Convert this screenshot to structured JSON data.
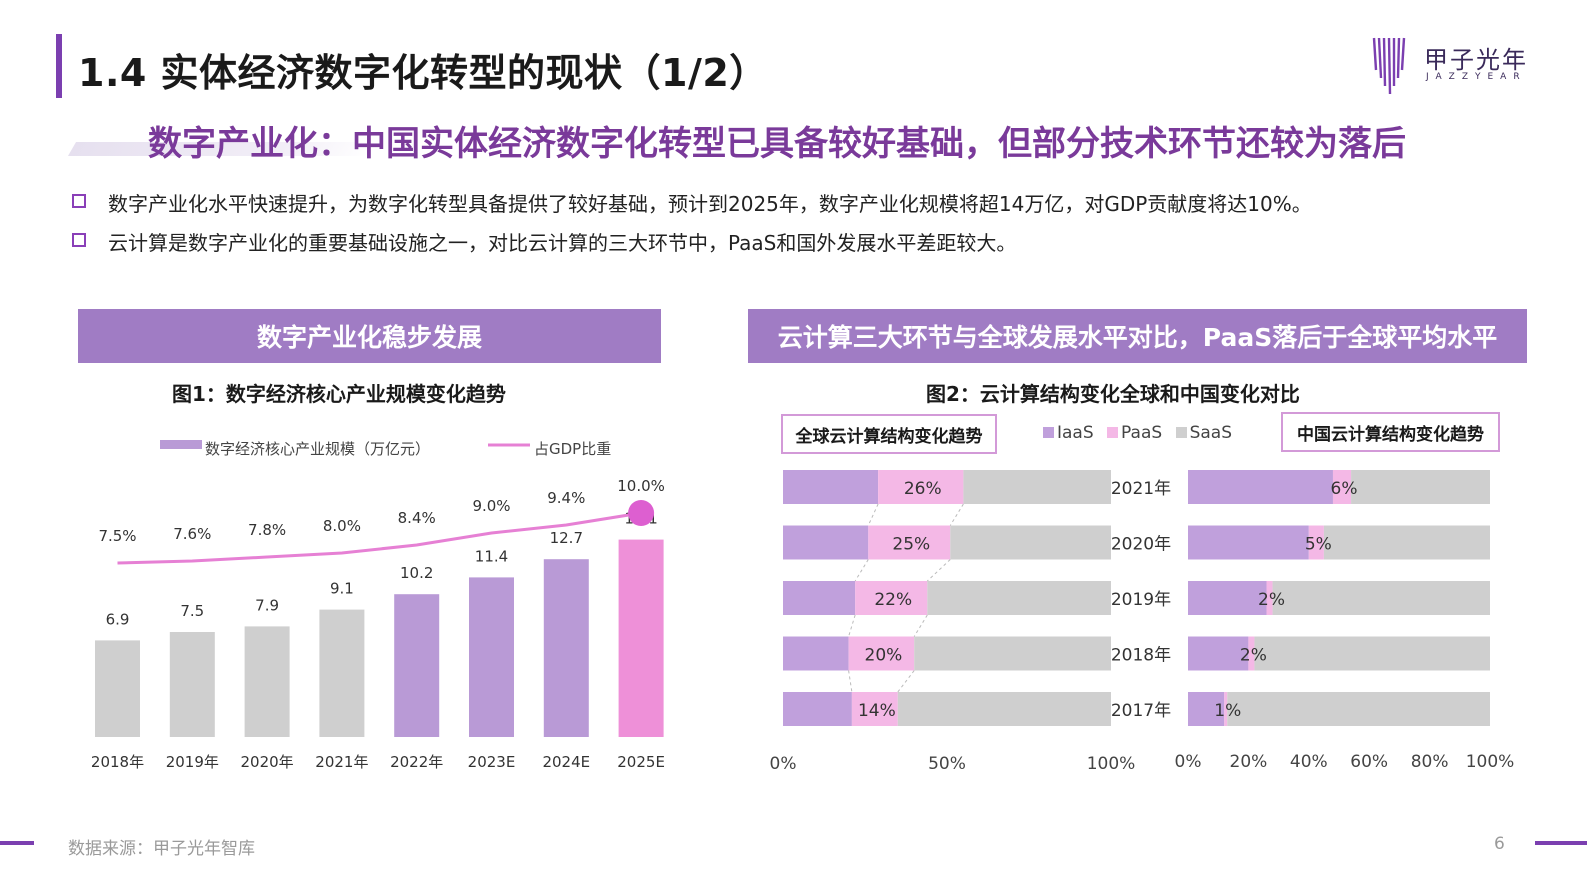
{
  "header": {
    "title": "1.4 实体经济数字化转型的现状（1/2）",
    "subtitle": "数字产业化：中国实体经济数字化转型已具备较好基础，但部分技术环节还较为落后",
    "logo_cn": "甲子光年",
    "logo_en": "JAZZYEAR"
  },
  "bullets": [
    "数字产业化水平快速提升，为数字化转型具备提供了较好基础，预计到2025年，数字产业化规模将超14万亿，对GDP贡献度将达10%。",
    "云计算是数字产业化的重要基础设施之一，对比云计算的三大环节中，PaaS和国外发展水平差距较大。"
  ],
  "left_panel": {
    "header": "数字产业化稳步发展",
    "figure_title": "图1：数字经济核心产业规模变化趋势"
  },
  "right_panel": {
    "header": "云计算三大环节与全球发展水平对比，PaaS落后于全球平均水平",
    "figure_title": "图2：云计算结构变化全球和中国变化对比",
    "global_label": "全球云计算结构变化趋势",
    "china_label": "中国云计算结构变化趋势"
  },
  "colors": {
    "accent": "#7b3fb0",
    "panel_header": "#a07cc4",
    "bar_gray": "#cfcfcf",
    "bar_purple": "#b99ad6",
    "bar_pink": "#ee90d8",
    "line_pink": "#e680d4",
    "iaas": "#c0a0dc",
    "paas": "#f4b8e6",
    "saas": "#cfcfcf"
  },
  "chart_data": [
    {
      "type": "bar",
      "legend": [
        "数字经济核心产业规模（万亿元）",
        "占GDP比重"
      ],
      "categories": [
        "2018年",
        "2019年",
        "2020年",
        "2021年",
        "2022年",
        "2023E",
        "2024E",
        "2025E"
      ],
      "series": [
        {
          "name": "数字经济核心产业规模（万亿元）",
          "values": [
            6.9,
            7.5,
            7.9,
            9.1,
            10.2,
            11.4,
            12.7,
            14.1
          ],
          "value_labels": [
            "6.9",
            "7.5",
            "7.9",
            "9.1",
            "10.2",
            "11.4",
            "12.7",
            "14.1"
          ]
        },
        {
          "name": "占GDP比重",
          "type": "line",
          "values": [
            7.5,
            7.6,
            7.8,
            8.0,
            8.4,
            9.0,
            9.4,
            10.0
          ],
          "value_labels": [
            "7.5%",
            "7.6%",
            "7.8%",
            "8.0%",
            "8.4%",
            "9.0%",
            "9.4%",
            "10.0%"
          ]
        }
      ],
      "bar_colors": [
        "gray",
        "gray",
        "gray",
        "gray",
        "purple",
        "purple",
        "purple",
        "pink"
      ]
    },
    {
      "type": "bar",
      "orientation": "horizontal-stacked-100",
      "title": "全球云计算结构变化趋势",
      "legend": [
        "IaaS",
        "PaaS",
        "SaaS"
      ],
      "categories": [
        "2021年",
        "2020年",
        "2019年",
        "2018年",
        "2017年"
      ],
      "series": [
        {
          "name": "IaaS",
          "values": [
            29,
            26,
            22,
            20,
            21
          ]
        },
        {
          "name": "PaaS",
          "values": [
            26,
            25,
            22,
            20,
            14
          ]
        },
        {
          "name": "SaaS",
          "values": [
            45,
            49,
            56,
            60,
            65
          ]
        }
      ],
      "paas_labels": [
        "26%",
        "25%",
        "22%",
        "20%",
        "14%"
      ],
      "x_ticks": [
        "0%",
        "50%",
        "100%"
      ],
      "xlim": [
        0,
        100
      ]
    },
    {
      "type": "bar",
      "orientation": "horizontal-stacked-100",
      "title": "中国云计算结构变化趋势",
      "categories": [
        "2021年",
        "2020年",
        "2019年",
        "2018年",
        "2017年"
      ],
      "series": [
        {
          "name": "IaaS",
          "values": [
            48,
            40,
            26,
            20,
            12
          ]
        },
        {
          "name": "PaaS",
          "values": [
            6,
            5,
            2,
            2,
            1
          ]
        },
        {
          "name": "SaaS",
          "values": [
            46,
            55,
            72,
            78,
            87
          ]
        }
      ],
      "paas_labels": [
        "6%",
        "5%",
        "2%",
        "2%",
        "1%"
      ],
      "x_ticks": [
        "0%",
        "20%",
        "40%",
        "60%",
        "80%",
        "100%"
      ],
      "xlim": [
        0,
        100
      ]
    }
  ],
  "footer": {
    "source": "数据来源：甲子光年智库",
    "page": "6"
  }
}
